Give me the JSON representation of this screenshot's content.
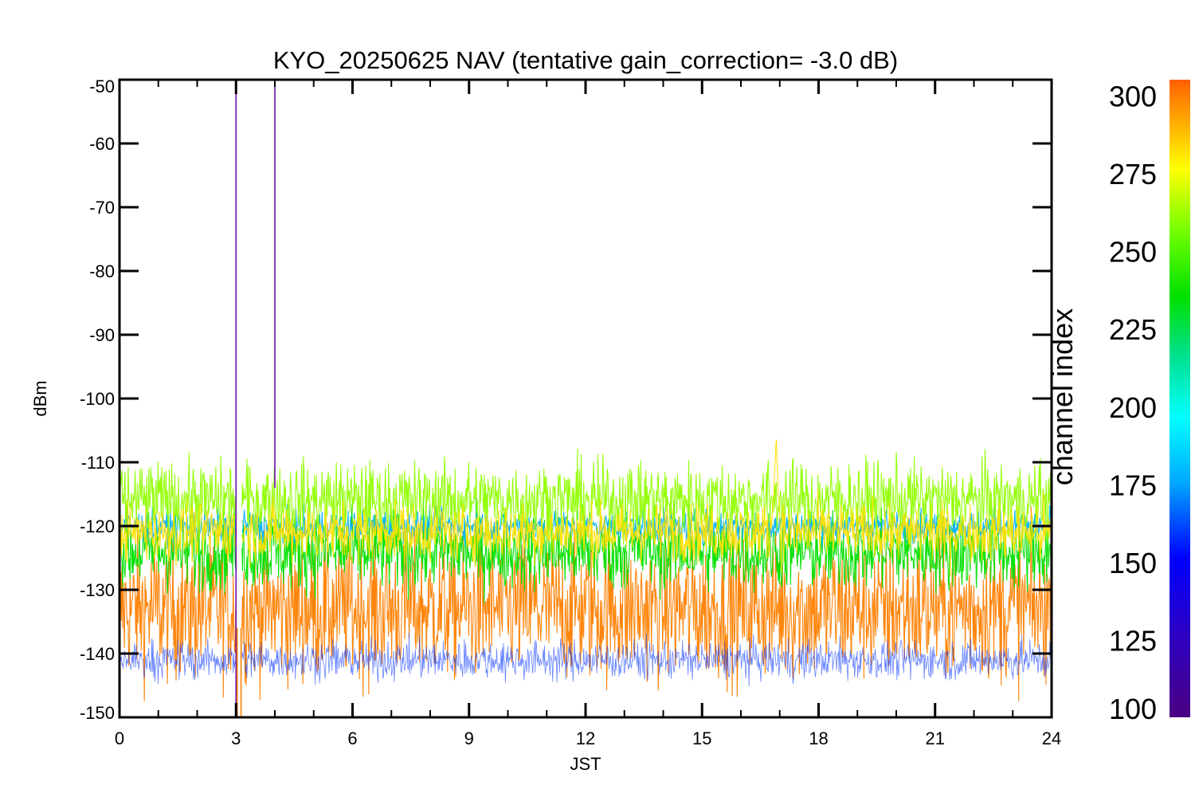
{
  "chart_data": {
    "type": "line",
    "title": "KYO_20250625 NAV (tentative gain_correction= -3.0 dB)",
    "xlabel": "JST",
    "ylabel": "dBm",
    "xlim": [
      0,
      24
    ],
    "ylim": [
      -150,
      -50
    ],
    "x_ticks": [
      "0",
      "3",
      "6",
      "9",
      "12",
      "15",
      "18",
      "21",
      "24"
    ],
    "y_ticks": [
      "-50",
      "-60",
      "-70",
      "-80",
      "-90",
      "-100",
      "-110",
      "-120",
      "-130",
      "-140",
      "-150"
    ],
    "grid": false,
    "colorbar": {
      "label": "channel index",
      "range": [
        100,
        305
      ],
      "colormap": "rainbow (purple to orange)",
      "ticks": [
        "100",
        "125",
        "150",
        "175",
        "200",
        "225",
        "250",
        "275",
        "300"
      ]
    },
    "series": [
      {
        "channel_band": 295,
        "color": "#ff8000",
        "center_dBm": -133,
        "spread_dBm": 5.5
      },
      {
        "channel_band": 278,
        "color": "#ffe000",
        "center_dBm": -121,
        "spread_dBm": 2.2
      },
      {
        "channel_band": 262,
        "color": "#90ff00",
        "center_dBm": -116,
        "spread_dBm": 3.0
      },
      {
        "channel_band": 235,
        "color": "#00e000",
        "center_dBm": -124,
        "spread_dBm": 3.0
      },
      {
        "channel_band": 170,
        "color": "#00b0ff",
        "center_dBm": -120,
        "spread_dBm": 1.2
      },
      {
        "channel_band": 140,
        "color": "#0030ff",
        "center_dBm": -141,
        "spread_dBm": 1.5
      }
    ],
    "events": [
      {
        "type": "vertical_line",
        "x": 3.0,
        "y_top": -50,
        "y_bottom": -150,
        "color": "#6a0dad"
      },
      {
        "type": "vertical_line",
        "x": 4.0,
        "y_top": -50,
        "y_bottom": -114,
        "color": "#6a0dad"
      },
      {
        "type": "data_gap",
        "x_start": 3.02,
        "x_end": 3.14
      },
      {
        "type": "vertical_line",
        "x": 3.03,
        "y_top": -136,
        "y_bottom": -150,
        "color": "#ff8000"
      },
      {
        "type": "vertical_line",
        "x": 3.13,
        "y_top": -136,
        "y_bottom": -150,
        "color": "#ff8000"
      },
      {
        "type": "spike",
        "x": 16.9,
        "peak_dBm": -102.5,
        "color": "#ffe000"
      }
    ]
  }
}
